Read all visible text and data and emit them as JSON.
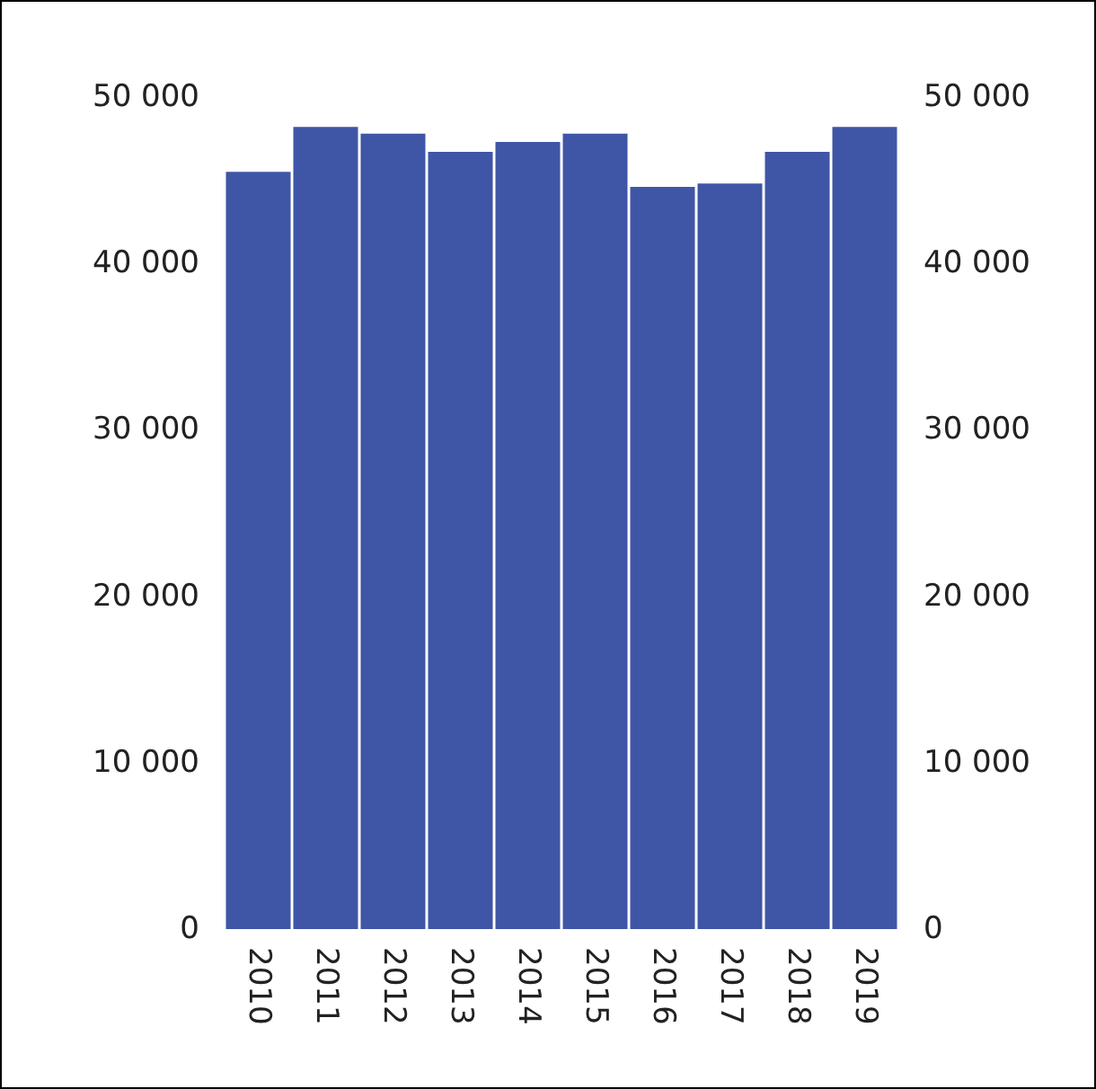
{
  "chart_data": {
    "type": "bar",
    "categories": [
      "2010",
      "2011",
      "2012",
      "2013",
      "2014",
      "2015",
      "2016",
      "2017",
      "2018",
      "2019"
    ],
    "values": [
      45500,
      48200,
      47800,
      46700,
      47300,
      47800,
      44600,
      44800,
      46700,
      48200
    ],
    "color": "#3f56a6",
    "ylim": [
      0,
      50000
    ],
    "yticks": [
      0,
      {
        "value": 10000,
        "label": "10 000"
      },
      {
        "value": 20000,
        "label": "20 000"
      },
      {
        "value": 30000,
        "label": "30 000"
      },
      {
        "value": 40000,
        "label": "40 000"
      },
      {
        "value": 50000,
        "label": "50 000"
      }
    ],
    "y2lim": [
      0,
      50000
    ],
    "y2ticks": [
      0,
      {
        "value": 10000,
        "label": "10 000"
      },
      {
        "value": 20000,
        "label": "20 000"
      },
      {
        "value": 30000,
        "label": "30 000"
      },
      {
        "value": 40000,
        "label": "40 000"
      },
      {
        "value": 50000,
        "label": "50 000"
      }
    ],
    "grid": false
  }
}
